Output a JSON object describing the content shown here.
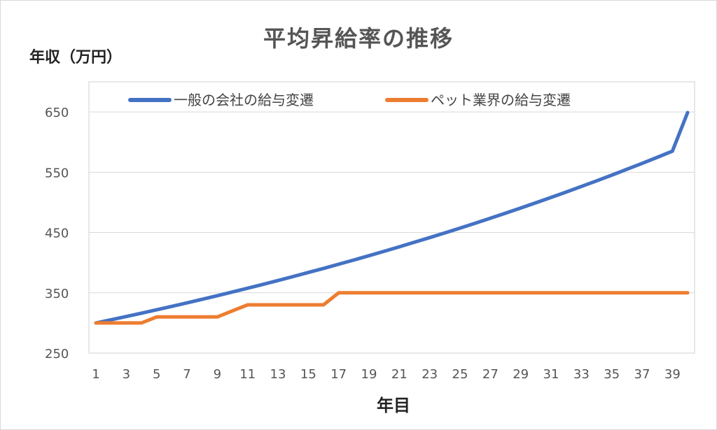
{
  "chart_data": {
    "type": "line",
    "title": "平均昇給率の推移",
    "ylabel": "年収（万円）",
    "xlabel": "年目",
    "ylim": [
      250,
      700
    ],
    "yticks": [
      250,
      350,
      450,
      550,
      650
    ],
    "xticks": [
      1,
      3,
      5,
      7,
      9,
      11,
      13,
      15,
      17,
      19,
      21,
      23,
      25,
      27,
      29,
      31,
      33,
      35,
      37,
      39
    ],
    "x": [
      1,
      2,
      3,
      4,
      5,
      6,
      7,
      8,
      9,
      10,
      11,
      12,
      13,
      14,
      15,
      16,
      17,
      18,
      19,
      20,
      21,
      22,
      23,
      24,
      25,
      26,
      27,
      28,
      29,
      30,
      31,
      32,
      33,
      34,
      35,
      36,
      37,
      38,
      39,
      40
    ],
    "series": [
      {
        "name": "一般の会社の給与変遷",
        "color": "#4472C4",
        "values": [
          300,
          305.3,
          310.7,
          316.2,
          321.8,
          327.5,
          333.3,
          339.2,
          345.2,
          351.4,
          357.6,
          363.9,
          370.4,
          377.0,
          383.7,
          390.5,
          397.4,
          404.4,
          411.6,
          418.9,
          426.3,
          433.9,
          441.6,
          449.4,
          457.4,
          465.5,
          473.7,
          482.1,
          490.7,
          499.4,
          508.2,
          517.2,
          526.4,
          535.7,
          545.2,
          554.9,
          564.7,
          574.7,
          584.9,
          649
        ]
      },
      {
        "name": "ペット業界の給与変遷",
        "color": "#ED7D31",
        "values": [
          300,
          300,
          300,
          300,
          310,
          310,
          310,
          310,
          310,
          320,
          330,
          330,
          330,
          330,
          330,
          330,
          350,
          350,
          350,
          350,
          350,
          350,
          350,
          350,
          350,
          350,
          350,
          350,
          350,
          350,
          350,
          350,
          350,
          350,
          350,
          350,
          350,
          350,
          350,
          350
        ]
      }
    ],
    "grid": "horizontal",
    "legend": "top"
  }
}
